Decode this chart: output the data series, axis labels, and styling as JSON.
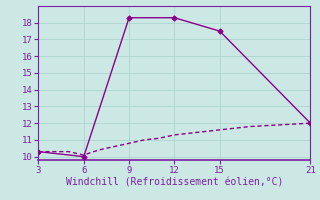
{
  "line1_x": [
    3,
    6,
    9,
    12,
    15,
    21
  ],
  "line1_y": [
    10.3,
    10.0,
    18.3,
    18.3,
    17.5,
    12.0
  ],
  "line2_x": [
    3,
    4,
    5,
    6,
    7,
    8,
    9,
    10,
    11,
    12,
    13,
    14,
    15,
    16,
    17,
    18,
    19,
    20,
    21
  ],
  "line2_y": [
    10.3,
    10.3,
    10.3,
    10.1,
    10.4,
    10.6,
    10.8,
    11.0,
    11.1,
    11.3,
    11.4,
    11.5,
    11.6,
    11.7,
    11.8,
    11.85,
    11.9,
    11.95,
    12.0
  ],
  "line_color": "#8b008b",
  "bg_color": "#cce8e4",
  "grid_color": "#aed4d0",
  "xlabel": "Windchill (Refroidissement éolien,°C)",
  "xlim": [
    3,
    21
  ],
  "ylim": [
    9.8,
    19.0
  ],
  "xticks": [
    3,
    6,
    9,
    12,
    15,
    21
  ],
  "yticks": [
    10,
    11,
    12,
    13,
    14,
    15,
    16,
    17,
    18
  ],
  "label_color": "#7b1fa2",
  "tick_color": "#7b1fa2",
  "marker": "D",
  "markersize": 2.5,
  "linewidth": 1.0
}
